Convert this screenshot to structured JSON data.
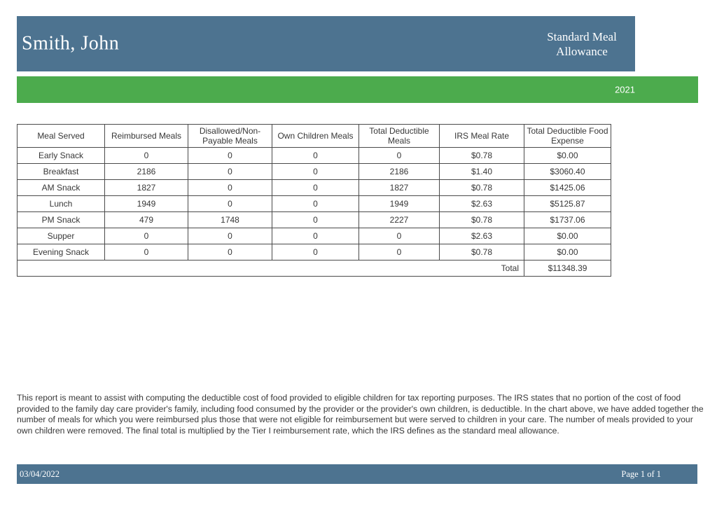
{
  "header": {
    "provider_name": "Smith, John",
    "report_title": "Standard Meal Allowance",
    "year": "2021"
  },
  "table": {
    "columns": [
      "Meal Served",
      "Reimbursed Meals",
      "Disallowed/Non-Payable Meals",
      "Own Children Meals",
      "Total Deductible Meals",
      "IRS Meal Rate",
      "Total Deductible Food Expense"
    ],
    "rows": [
      [
        "Early Snack",
        "0",
        "0",
        "0",
        "0",
        "$0.78",
        "$0.00"
      ],
      [
        "Breakfast",
        "2186",
        "0",
        "0",
        "2186",
        "$1.40",
        "$3060.40"
      ],
      [
        "AM Snack",
        "1827",
        "0",
        "0",
        "1827",
        "$0.78",
        "$1425.06"
      ],
      [
        "Lunch",
        "1949",
        "0",
        "0",
        "1949",
        "$2.63",
        "$5125.87"
      ],
      [
        "PM Snack",
        "479",
        "1748",
        "0",
        "2227",
        "$0.78",
        "$1737.06"
      ],
      [
        "Supper",
        "0",
        "0",
        "0",
        "0",
        "$2.63",
        "$0.00"
      ],
      [
        "Evening Snack",
        "0",
        "0",
        "0",
        "0",
        "$0.78",
        "$0.00"
      ]
    ],
    "total_label": "Total",
    "total_value": "$11348.39"
  },
  "description": "This report is meant to assist with computing the deductible cost of food provided to eligible children for tax reporting purposes. The IRS states that no portion of the cost of food provided to the family day care provider's family, including food consumed by the provider or the provider's own children, is deductible. In the chart above, we have added together the number of meals for which you were reimbursed plus those that were not eligible for reimbursement but were served to children in your care. The number of meals provided to your own children were removed. The final total is multiplied by the Tier I reimbursement rate, which the IRS defines as the standard meal allowance.",
  "footer": {
    "date": "03/04/2022",
    "page": "Page 1 of 1"
  },
  "colors": {
    "header_blue": "#4d7390",
    "year_green": "#4cab4d",
    "table_border": "#4a4a4a",
    "text_dark": "#373737"
  }
}
